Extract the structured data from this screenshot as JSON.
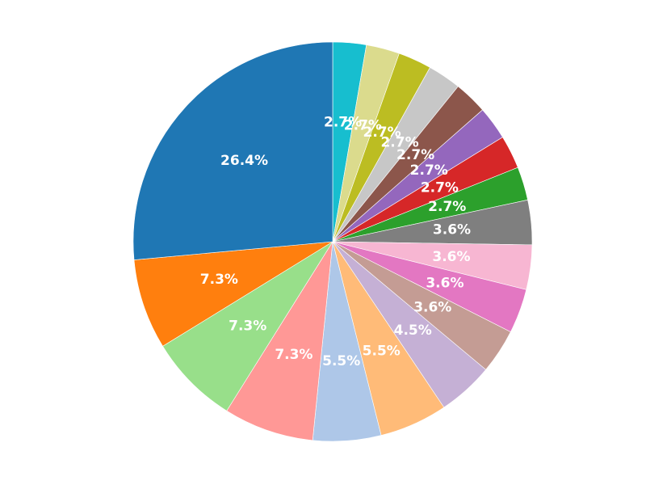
{
  "chart_data": {
    "type": "pie",
    "title": "",
    "start_angle_deg": 90,
    "direction": "clockwise",
    "label_format": "percent_1dp",
    "slices": [
      {
        "label": "2.7%",
        "value": 2.7,
        "color": "#17becf"
      },
      {
        "label": "2.7%",
        "value": 2.7,
        "color": "#dbdb8d"
      },
      {
        "label": "2.7%",
        "value": 2.7,
        "color": "#bcbd22"
      },
      {
        "label": "2.7%",
        "value": 2.7,
        "color": "#c7c7c7"
      },
      {
        "label": "2.7%",
        "value": 2.7,
        "color": "#8c564b"
      },
      {
        "label": "2.7%",
        "value": 2.7,
        "color": "#9467bd"
      },
      {
        "label": "2.7%",
        "value": 2.7,
        "color": "#d62728"
      },
      {
        "label": "2.7%",
        "value": 2.7,
        "color": "#2ca02c"
      },
      {
        "label": "3.6%",
        "value": 3.6,
        "color": "#7f7f7f"
      },
      {
        "label": "3.6%",
        "value": 3.6,
        "color": "#f7b6d2"
      },
      {
        "label": "3.6%",
        "value": 3.6,
        "color": "#e377c2"
      },
      {
        "label": "3.6%",
        "value": 3.6,
        "color": "#c49c94"
      },
      {
        "label": "4.5%",
        "value": 4.5,
        "color": "#c5b0d5"
      },
      {
        "label": "5.5%",
        "value": 5.5,
        "color": "#ffbb78"
      },
      {
        "label": "5.5%",
        "value": 5.5,
        "color": "#aec7e8"
      },
      {
        "label": "7.3%",
        "value": 7.3,
        "color": "#ff9896"
      },
      {
        "label": "7.3%",
        "value": 7.3,
        "color": "#98df8a"
      },
      {
        "label": "7.3%",
        "value": 7.3,
        "color": "#ff7f0e"
      },
      {
        "label": "26.4%",
        "value": 26.4,
        "color": "#1f77b4"
      }
    ]
  }
}
